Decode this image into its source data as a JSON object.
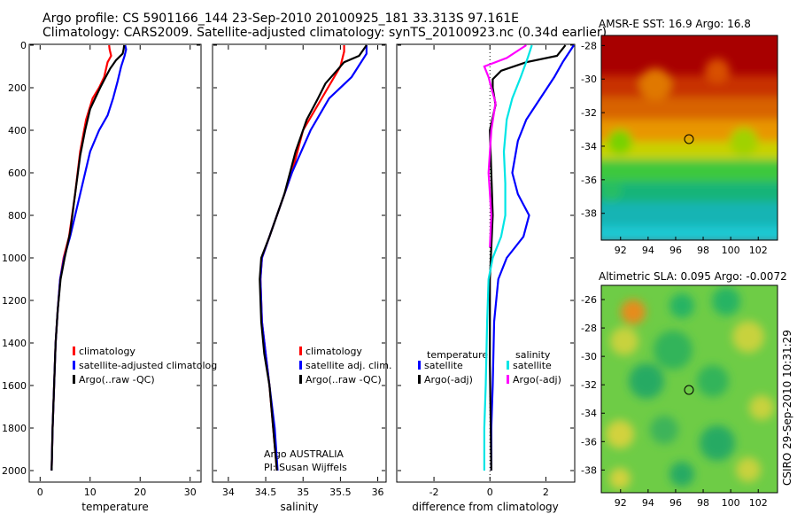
{
  "header": {
    "title_line1": "Argo profile: CS 5901166_144 23-Sep-2010 20100925_181 33.313S 97.161E",
    "title_line2": "Climatology: CARS2009. Satellite-adjusted climatology: synTS_20100923.nc (0.34d earlier)"
  },
  "colors": {
    "climatology": "#ff0000",
    "satellite": "#0000ff",
    "argo": "#000000",
    "salinity_satellite": "#00e5e5",
    "salinity_argo": "#ff00ff"
  },
  "chart_data": [
    {
      "type": "line",
      "panel": "temperature",
      "xlabel": "temperature",
      "ylabel": "",
      "xlim": [
        -2,
        32
      ],
      "ylim": [
        2050,
        0
      ],
      "x_ticks": [
        0,
        10,
        20,
        30
      ],
      "y_ticks": [
        0,
        200,
        400,
        600,
        800,
        1000,
        1200,
        1400,
        1600,
        1800,
        2000
      ],
      "legend": [
        "climatology",
        "satellite-adjusted climatolog",
        "Argo(..raw -QC)"
      ],
      "series": [
        {
          "name": "climatology",
          "color": "#ff0000",
          "points": [
            [
              13.8,
              0
            ],
            [
              13.9,
              20
            ],
            [
              14.2,
              50
            ],
            [
              13.5,
              80
            ],
            [
              12.8,
              150
            ],
            [
              11.8,
              200
            ],
            [
              10.5,
              250
            ],
            [
              9.2,
              350
            ],
            [
              8,
              500
            ],
            [
              7,
              700
            ],
            [
              5.8,
              900
            ],
            [
              4.7,
              1000
            ],
            [
              4,
              1100
            ],
            [
              3.5,
              1250
            ],
            [
              3.1,
              1400
            ],
            [
              2.8,
              1600
            ],
            [
              2.5,
              1800
            ],
            [
              2.3,
              2000
            ]
          ]
        },
        {
          "name": "satellite-adjusted climatolog",
          "color": "#0000ff",
          "points": [
            [
              17,
              0
            ],
            [
              17.2,
              20
            ],
            [
              16.9,
              50
            ],
            [
              16.2,
              100
            ],
            [
              15.5,
              170
            ],
            [
              14.6,
              250
            ],
            [
              13.5,
              330
            ],
            [
              11.8,
              400
            ],
            [
              10,
              500
            ],
            [
              8,
              700
            ],
            [
              6,
              900
            ],
            [
              4.8,
              1000
            ],
            [
              4,
              1100
            ],
            [
              3.5,
              1250
            ],
            [
              3.1,
              1400
            ],
            [
              2.8,
              1600
            ],
            [
              2.5,
              1800
            ],
            [
              2.3,
              2000
            ]
          ]
        },
        {
          "name": "Argo(..raw -QC)",
          "color": "#000000",
          "points": [
            [
              16.8,
              0
            ],
            [
              16.7,
              20
            ],
            [
              16.5,
              40
            ],
            [
              15.2,
              70
            ],
            [
              14,
              110
            ],
            [
              13.1,
              150
            ],
            [
              12,
              200
            ],
            [
              11,
              250
            ],
            [
              10,
              300
            ],
            [
              9,
              400
            ],
            [
              8,
              520
            ],
            [
              7,
              700
            ],
            [
              6,
              880
            ],
            [
              4.9,
              1000
            ],
            [
              4.1,
              1100
            ],
            [
              3.5,
              1250
            ],
            [
              3.1,
              1400
            ],
            [
              2.8,
              1600
            ],
            [
              2.5,
              1800
            ],
            [
              2.3,
              2000
            ]
          ]
        }
      ]
    },
    {
      "type": "line",
      "panel": "salinity",
      "xlabel": "salinity",
      "ylabel": "",
      "xlim": [
        33.8,
        36.1
      ],
      "ylim": [
        2050,
        0
      ],
      "x_ticks": [
        34,
        34.5,
        35,
        35.5,
        36
      ],
      "legend": [
        "climatology",
        "satellite adj. clim.",
        "Argo(..raw -QC)"
      ],
      "annotations": [
        "Argo AUSTRALIA",
        "PI: Susan Wijffels"
      ],
      "series": [
        {
          "name": "climatology",
          "color": "#ff0000",
          "points": [
            [
              35.55,
              0
            ],
            [
              35.55,
              30
            ],
            [
              35.5,
              100
            ],
            [
              35.25,
              250
            ],
            [
              35.0,
              400
            ],
            [
              34.85,
              600
            ],
            [
              34.6,
              850
            ],
            [
              34.45,
              1000
            ],
            [
              34.43,
              1100
            ],
            [
              34.45,
              1300
            ],
            [
              34.5,
              1450
            ],
            [
              34.55,
              1600
            ],
            [
              34.6,
              1800
            ],
            [
              34.65,
              2000
            ]
          ]
        },
        {
          "name": "satellite adj. clim.",
          "color": "#0000ff",
          "points": [
            [
              35.85,
              0
            ],
            [
              35.85,
              40
            ],
            [
              35.65,
              150
            ],
            [
              35.35,
              250
            ],
            [
              35.1,
              400
            ],
            [
              34.85,
              600
            ],
            [
              34.6,
              850
            ],
            [
              34.45,
              1000
            ],
            [
              34.43,
              1100
            ],
            [
              34.45,
              1300
            ],
            [
              34.5,
              1450
            ],
            [
              34.55,
              1600
            ],
            [
              34.62,
              1800
            ],
            [
              34.66,
              2000
            ]
          ]
        },
        {
          "name": "Argo(..raw -QC)",
          "color": "#000000",
          "points": [
            [
              35.85,
              0
            ],
            [
              35.75,
              50
            ],
            [
              35.55,
              80
            ],
            [
              35.45,
              120
            ],
            [
              35.3,
              180
            ],
            [
              35.2,
              250
            ],
            [
              35.05,
              350
            ],
            [
              34.9,
              500
            ],
            [
              34.75,
              700
            ],
            [
              34.55,
              900
            ],
            [
              34.44,
              1000
            ],
            [
              34.42,
              1100
            ],
            [
              34.44,
              1300
            ],
            [
              34.48,
              1450
            ],
            [
              34.55,
              1600
            ],
            [
              34.6,
              1800
            ],
            [
              34.65,
              2000
            ]
          ]
        }
      ]
    },
    {
      "type": "line",
      "panel": "difference",
      "xlabel": "difference from climatology",
      "ylabel": "",
      "xlim": [
        -3.3,
        3
      ],
      "ylim": [
        2050,
        0
      ],
      "x_ticks": [
        -2,
        0,
        2
      ],
      "legend_titles": [
        "temperature",
        "salinity"
      ],
      "legend": [
        "satellite",
        "Argo(-adj)",
        "satellite",
        "Argo(-adj)"
      ],
      "series": [
        {
          "name": "satellite",
          "color": "#0000ff",
          "points": [
            [
              3.0,
              0
            ],
            [
              2.6,
              80
            ],
            [
              2.3,
              150
            ],
            [
              1.8,
              250
            ],
            [
              1.3,
              350
            ],
            [
              1.0,
              450
            ],
            [
              0.8,
              600
            ],
            [
              1.0,
              700
            ],
            [
              1.4,
              800
            ],
            [
              1.2,
              900
            ],
            [
              0.6,
              1000
            ],
            [
              0.3,
              1100
            ],
            [
              0.15,
              1300
            ],
            [
              0.1,
              1600
            ],
            [
              0.05,
              1800
            ],
            [
              0.05,
              2000
            ]
          ]
        },
        {
          "name": "Argo(-adj)",
          "color": "#000000",
          "points": [
            [
              2.7,
              0
            ],
            [
              2.4,
              50
            ],
            [
              1.3,
              80
            ],
            [
              0.4,
              120
            ],
            [
              0.1,
              160
            ],
            [
              0.1,
              200
            ],
            [
              0.2,
              280
            ],
            [
              0,
              400
            ],
            [
              0.05,
              600
            ],
            [
              0.1,
              800
            ],
            [
              0.05,
              950
            ],
            [
              0,
              1100
            ],
            [
              0,
              1500
            ],
            [
              0.05,
              2000
            ]
          ]
        },
        {
          "name": "satellite",
          "color": "#00e5e5",
          "points": [
            [
              1.5,
              0
            ],
            [
              1.35,
              60
            ],
            [
              1.1,
              150
            ],
            [
              0.8,
              250
            ],
            [
              0.6,
              350
            ],
            [
              0.5,
              500
            ],
            [
              0.55,
              650
            ],
            [
              0.55,
              800
            ],
            [
              0.4,
              900
            ],
            [
              0.1,
              1000
            ],
            [
              -0.05,
              1100
            ],
            [
              -0.1,
              1300
            ],
            [
              -0.15,
              1600
            ],
            [
              -0.2,
              1800
            ],
            [
              -0.2,
              2000
            ]
          ]
        },
        {
          "name": "Argo(-adj)",
          "color": "#ff00ff",
          "points": [
            [
              1.3,
              0
            ],
            [
              0.6,
              60
            ],
            [
              -0.2,
              100
            ],
            [
              -0.05,
              150
            ],
            [
              0.05,
              200
            ],
            [
              0.2,
              270
            ],
            [
              0.05,
              400
            ],
            [
              -0.05,
              600
            ],
            [
              0.05,
              800
            ],
            [
              0,
              950
            ]
          ]
        }
      ]
    },
    {
      "type": "heatmap",
      "panel": "sst",
      "title": "AMSR-E SST: 16.9 Argo: 16.8",
      "xlim": [
        90.6,
        103.4
      ],
      "ylim": [
        -39.6,
        -27.4
      ],
      "x_ticks": [
        92,
        94,
        96,
        98,
        100,
        102
      ],
      "y_ticks": [
        -28,
        -30,
        -32,
        -34,
        -36,
        -38
      ],
      "marker": {
        "lon": 97.161,
        "lat": -33.313
      }
    },
    {
      "type": "heatmap",
      "panel": "sla",
      "title": "Altimetric SLA: 0.095 Argo: -0.0072",
      "xlim": [
        90.6,
        103.4
      ],
      "ylim": [
        -39.6,
        -25
      ],
      "x_ticks": [
        92,
        94,
        96,
        98,
        100,
        102
      ],
      "y_ticks": [
        -26,
        -28,
        -30,
        -32,
        -34,
        -36,
        -38
      ],
      "marker": {
        "lon": 97.161,
        "lat": -33.313
      }
    }
  ],
  "footer": {
    "credit": "CSIRO 29-Sep-2010 10:31:29"
  }
}
